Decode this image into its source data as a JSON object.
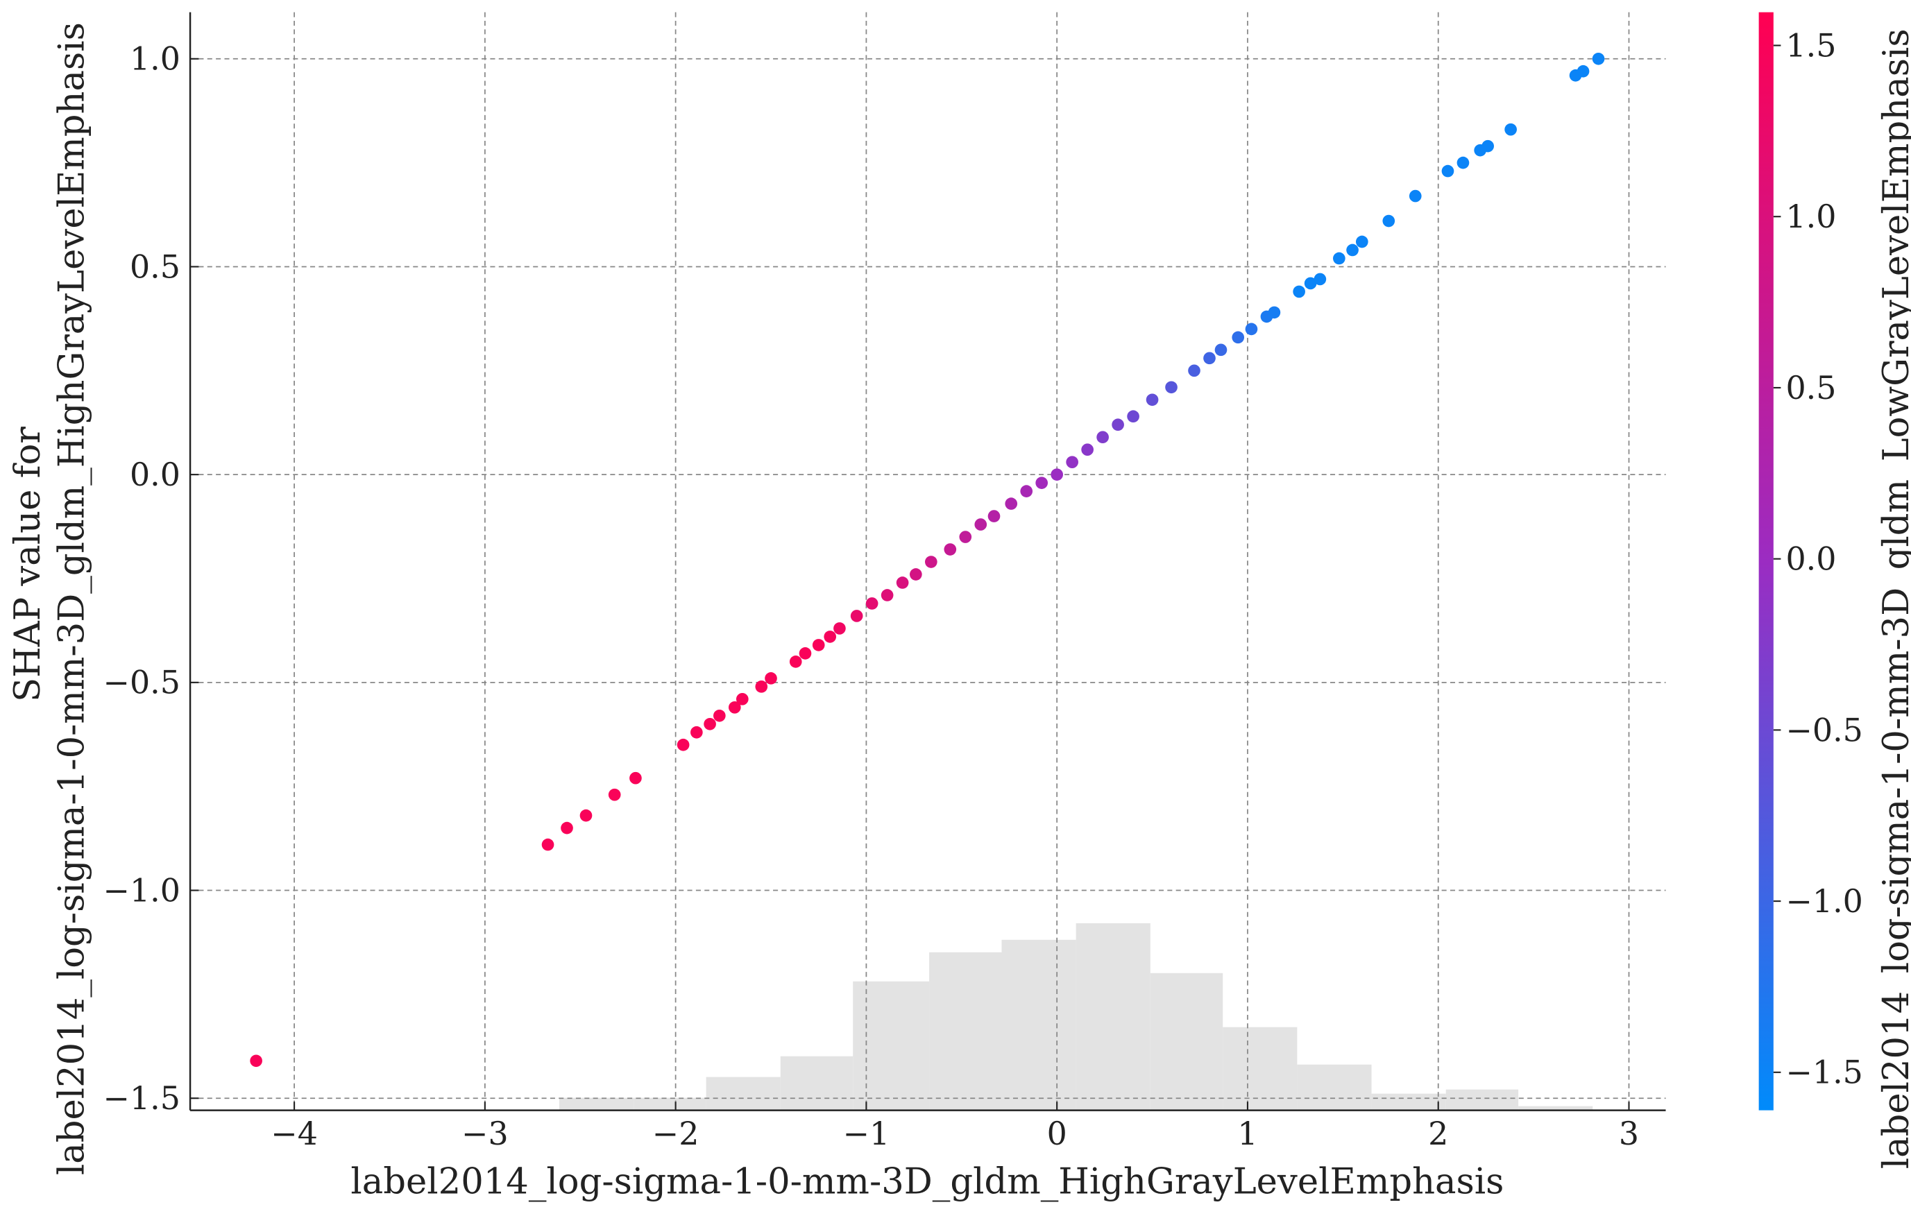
{
  "chart_data": {
    "type": "scatter",
    "xlabel": "label2014_log-sigma-1-0-mm-3D_gldm_HighGrayLevelEmphasis",
    "ylabel": [
      "SHAP value for",
      "label2014_log-sigma-1-0-mm-3D_gldm_HighGrayLevelEmphasis"
    ],
    "colorbar_label": "label2014_log-sigma-1-0-mm-3D_gldm_LowGrayLevelEmphasis",
    "x": [
      -4.2,
      -2.67,
      -2.57,
      -2.47,
      -2.32,
      -2.21,
      -1.96,
      -1.89,
      -1.82,
      -1.77,
      -1.69,
      -1.65,
      -1.55,
      -1.5,
      -1.37,
      -1.32,
      -1.25,
      -1.19,
      -1.14,
      -1.05,
      -0.97,
      -0.89,
      -0.81,
      -0.74,
      -0.66,
      -0.56,
      -0.48,
      -0.4,
      -0.33,
      -0.24,
      -0.16,
      -0.08,
      0,
      0.08,
      0.16,
      0.24,
      0.32,
      0.4,
      0.5,
      0.6,
      0.72,
      0.8,
      0.86,
      0.95,
      1.02,
      1.1,
      1.14,
      1.27,
      1.33,
      1.38,
      1.48,
      1.55,
      1.6,
      1.74,
      1.88,
      2.05,
      2.13,
      2.22,
      2.26,
      2.38,
      2.72,
      2.76,
      2.84
    ],
    "values": [
      -1.41,
      -0.89,
      -0.85,
      -0.82,
      -0.77,
      -0.73,
      -0.65,
      -0.62,
      -0.6,
      -0.58,
      -0.56,
      -0.54,
      -0.51,
      -0.49,
      -0.45,
      -0.43,
      -0.41,
      -0.39,
      -0.37,
      -0.34,
      -0.31,
      -0.29,
      -0.26,
      -0.24,
      -0.21,
      -0.18,
      -0.15,
      -0.12,
      -0.1,
      -0.07,
      -0.04,
      -0.02,
      0,
      0.03,
      0.06,
      0.09,
      0.12,
      0.14,
      0.18,
      0.21,
      0.25,
      0.28,
      0.3,
      0.33,
      0.35,
      0.38,
      0.39,
      0.44,
      0.46,
      0.47,
      0.52,
      0.54,
      0.56,
      0.61,
      0.67,
      0.73,
      0.75,
      0.78,
      0.79,
      0.83,
      0.96,
      0.97,
      1.0
    ],
    "color_values": [
      1.5,
      1.5,
      1.5,
      1.5,
      1.5,
      1.5,
      1.5,
      1.5,
      1.5,
      1.5,
      1.5,
      1.5,
      1.5,
      1.5,
      1.5,
      1.5,
      1.5,
      1.45,
      1.37,
      1.26,
      1.16,
      1.07,
      0.97,
      0.89,
      0.79,
      0.67,
      0.58,
      0.48,
      0.4,
      0.29,
      0.19,
      0.1,
      0,
      -0.1,
      -0.19,
      -0.29,
      -0.38,
      -0.48,
      -0.6,
      -0.72,
      -0.86,
      -0.96,
      -1.03,
      -1.14,
      -1.22,
      -1.32,
      -1.37,
      -1.5,
      -1.5,
      -1.5,
      -1.5,
      -1.5,
      -1.5,
      -1.5,
      -1.5,
      -1.5,
      -1.5,
      -1.5,
      -1.5,
      -1.5,
      -1.5,
      -1.5,
      -1.5
    ],
    "colormap": [
      "#008bfb",
      "#9b2cc2",
      "#ff0052"
    ],
    "xlim": [
      -4.546,
      3.193
    ],
    "ylim": [
      -1.529,
      1.112
    ],
    "clim": [
      -1.611,
      1.597
    ],
    "xticks": [
      {
        "value": -4,
        "label": "−4"
      },
      {
        "value": -3,
        "label": "−3"
      },
      {
        "value": -2,
        "label": "−2"
      },
      {
        "value": -1,
        "label": "−1"
      },
      0,
      1,
      2,
      3
    ],
    "yticks": [
      {
        "value": -1.5,
        "label": "−1.5"
      },
      {
        "value": -1,
        "label": "−1.0"
      },
      {
        "value": -0.5,
        "label": "−0.5"
      },
      {
        "value": 0,
        "label": "0.0"
      },
      0.5,
      {
        "value": 1,
        "label": "1.0"
      }
    ],
    "cticks": [
      {
        "value": -1.5,
        "label": "−1.5"
      },
      {
        "value": -1,
        "label": "−1.0"
      },
      {
        "value": -0.5,
        "label": "−0.5"
      },
      {
        "value": 0,
        "label": "0.0"
      },
      0.5,
      {
        "value": 1,
        "label": "1.0"
      },
      1.5
    ],
    "grid": true,
    "histogram": {
      "color": "#e3e3e3",
      "bins": [
        -2.61,
        -2.22,
        -1.84,
        -1.45,
        -1.07,
        -0.67,
        -0.29,
        0.1,
        0.49,
        0.87,
        1.26,
        1.65,
        2.04,
        2.42,
        2.81
      ],
      "values": [
        0.03,
        0.03,
        0.08,
        0.13,
        0.31,
        0.38,
        0.41,
        0.45,
        0.33,
        0.2,
        0.11,
        0.04,
        0.05,
        0.01
      ]
    }
  }
}
